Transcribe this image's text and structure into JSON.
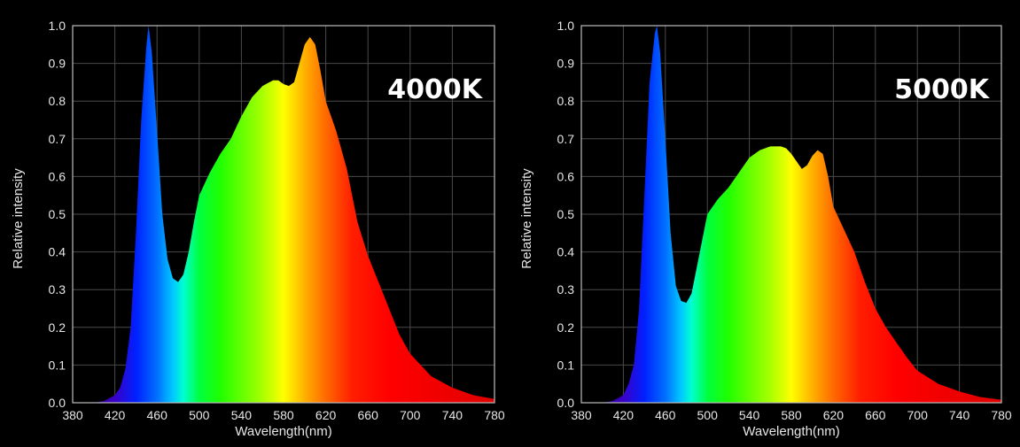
{
  "chart_data": [
    {
      "type": "area",
      "annotation": "4000K",
      "xlabel": "Wavelength(nm)",
      "ylabel": "Relative intensity",
      "xlim": [
        380,
        780
      ],
      "ylim": [
        0,
        1.0
      ],
      "x_ticks": [
        "380",
        "420",
        "460",
        "500",
        "540",
        "580",
        "620",
        "660",
        "700",
        "740",
        "780"
      ],
      "y_ticks": [
        "0.0",
        "0.1",
        "0.2",
        "0.3",
        "0.4",
        "0.5",
        "0.6",
        "0.7",
        "0.8",
        "0.9",
        "1.0"
      ],
      "grid": true,
      "fill": "spectral-gradient",
      "x": [
        380,
        400,
        410,
        420,
        425,
        430,
        435,
        440,
        445,
        450,
        452,
        455,
        460,
        465,
        470,
        475,
        480,
        485,
        490,
        495,
        500,
        505,
        510,
        520,
        530,
        540,
        550,
        560,
        570,
        575,
        580,
        585,
        590,
        595,
        600,
        605,
        610,
        615,
        620,
        630,
        640,
        650,
        660,
        670,
        680,
        690,
        700,
        720,
        740,
        760,
        780
      ],
      "y": [
        0.0,
        0.0,
        0.005,
        0.02,
        0.04,
        0.09,
        0.2,
        0.45,
        0.75,
        0.95,
        1.0,
        0.93,
        0.72,
        0.5,
        0.38,
        0.33,
        0.32,
        0.34,
        0.4,
        0.48,
        0.55,
        0.58,
        0.61,
        0.66,
        0.7,
        0.76,
        0.81,
        0.84,
        0.855,
        0.855,
        0.845,
        0.84,
        0.85,
        0.9,
        0.95,
        0.97,
        0.95,
        0.88,
        0.8,
        0.72,
        0.62,
        0.48,
        0.39,
        0.32,
        0.25,
        0.18,
        0.13,
        0.07,
        0.04,
        0.02,
        0.01
      ]
    },
    {
      "type": "area",
      "annotation": "5000K",
      "xlabel": "Wavelength(nm)",
      "ylabel": "Relative intensity",
      "xlim": [
        380,
        780
      ],
      "ylim": [
        0,
        1.0
      ],
      "x_ticks": [
        "380",
        "420",
        "460",
        "500",
        "540",
        "580",
        "620",
        "660",
        "700",
        "740",
        "780"
      ],
      "y_ticks": [
        "0.0",
        "0.1",
        "0.2",
        "0.3",
        "0.4",
        "0.5",
        "0.6",
        "0.7",
        "0.8",
        "0.9",
        "1.0"
      ],
      "grid": true,
      "fill": "spectral-gradient",
      "x": [
        380,
        400,
        410,
        420,
        425,
        430,
        435,
        440,
        445,
        450,
        452,
        455,
        460,
        465,
        470,
        475,
        480,
        485,
        490,
        495,
        500,
        510,
        520,
        530,
        540,
        550,
        560,
        570,
        575,
        580,
        585,
        590,
        595,
        600,
        605,
        610,
        615,
        620,
        630,
        640,
        650,
        660,
        670,
        680,
        690,
        700,
        720,
        740,
        760,
        780
      ],
      "y": [
        0.0,
        0.0,
        0.005,
        0.02,
        0.05,
        0.1,
        0.25,
        0.55,
        0.85,
        0.98,
        1.0,
        0.93,
        0.7,
        0.45,
        0.31,
        0.27,
        0.265,
        0.29,
        0.36,
        0.43,
        0.5,
        0.54,
        0.57,
        0.61,
        0.65,
        0.67,
        0.68,
        0.68,
        0.675,
        0.66,
        0.64,
        0.62,
        0.63,
        0.655,
        0.67,
        0.66,
        0.6,
        0.52,
        0.46,
        0.4,
        0.32,
        0.25,
        0.2,
        0.16,
        0.12,
        0.085,
        0.05,
        0.03,
        0.015,
        0.008
      ]
    }
  ]
}
